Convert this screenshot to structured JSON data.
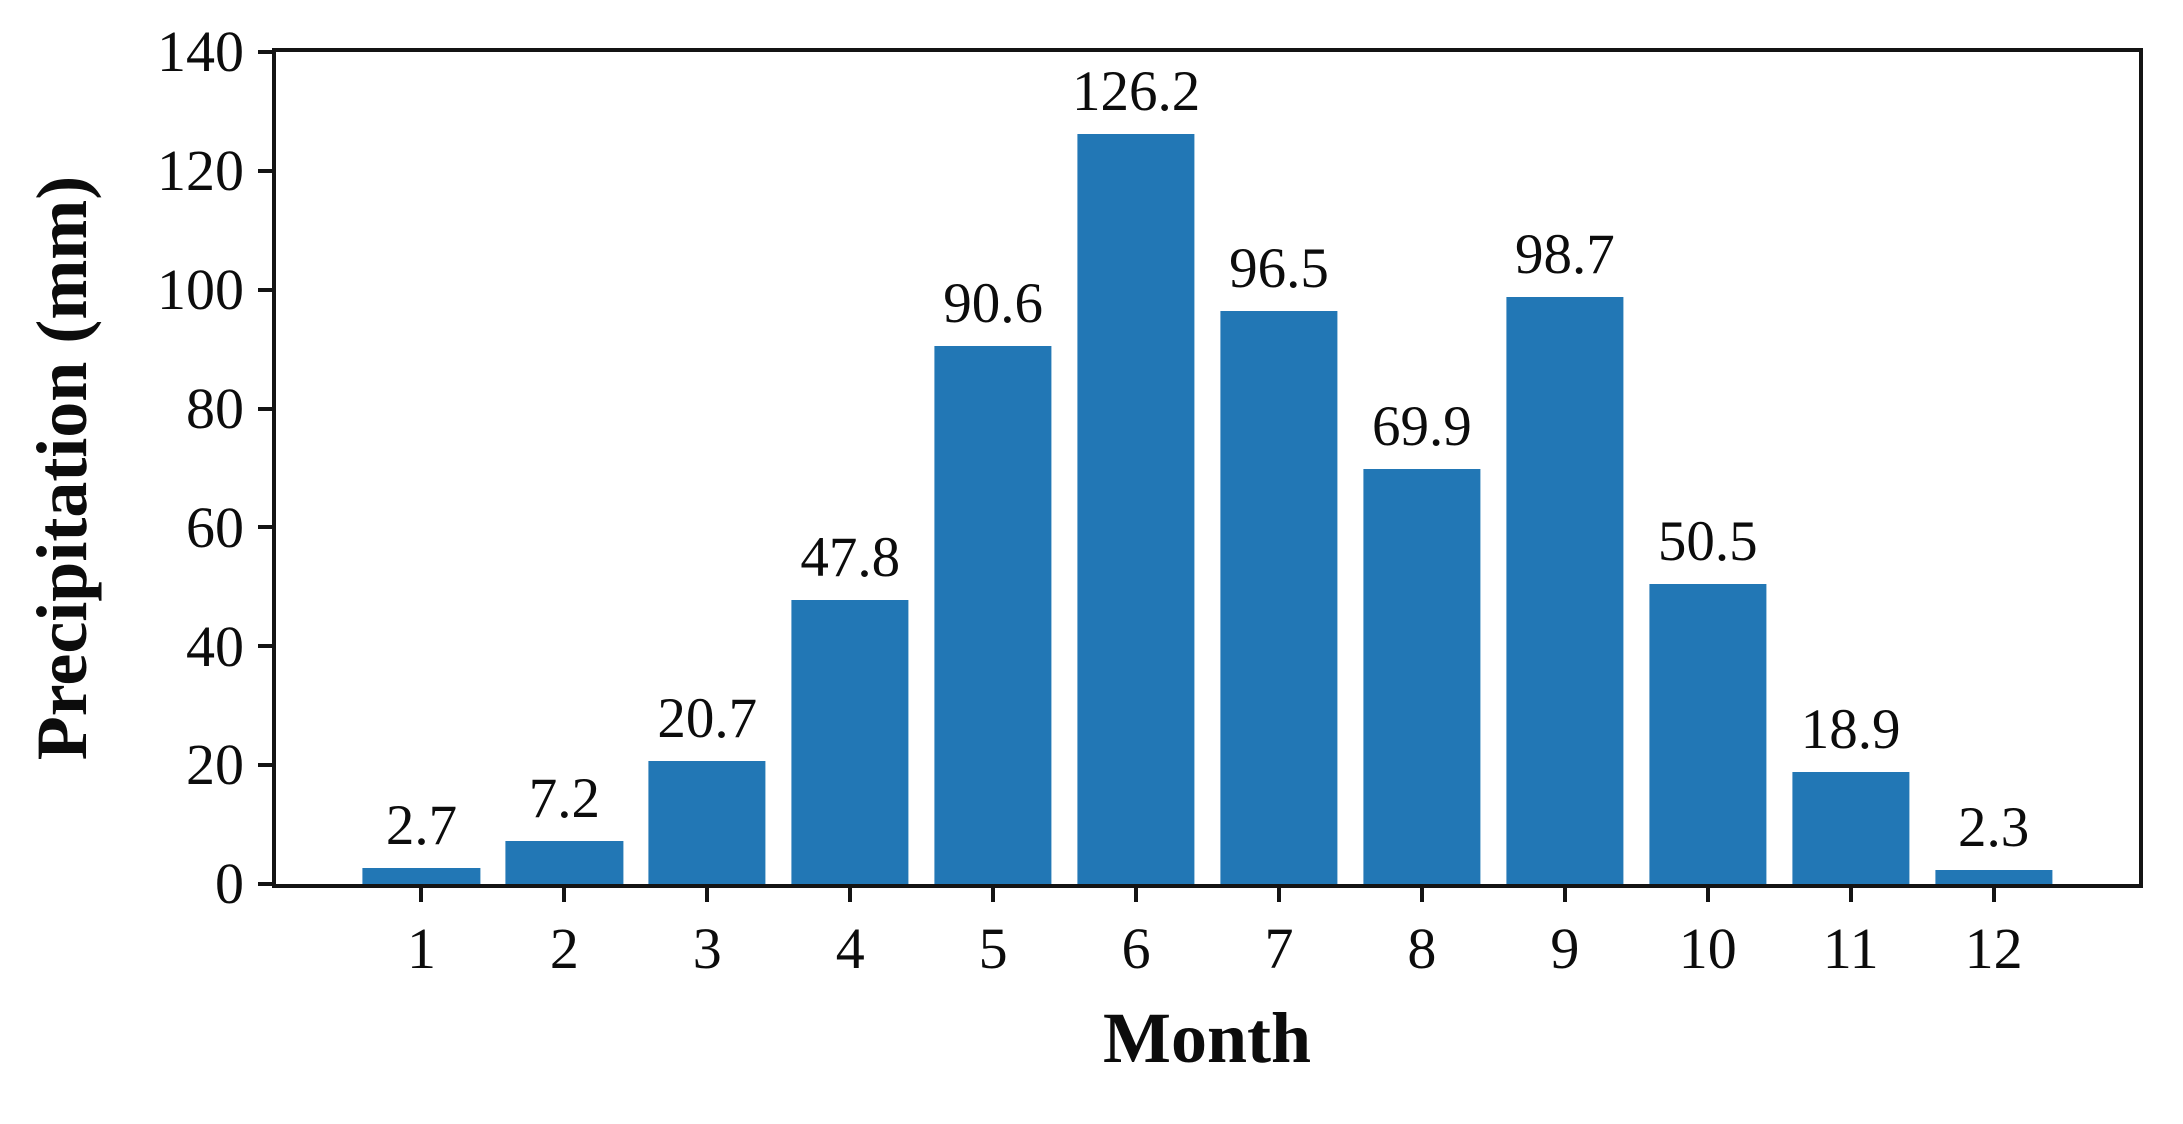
{
  "chart_data": {
    "type": "bar",
    "title": "",
    "xlabel": "Month",
    "ylabel": "Precipitation (mm)",
    "categories": [
      "1",
      "2",
      "3",
      "4",
      "5",
      "6",
      "7",
      "8",
      "9",
      "10",
      "11",
      "12"
    ],
    "values": [
      2.7,
      7.2,
      20.7,
      47.8,
      90.6,
      126.2,
      96.5,
      69.9,
      98.7,
      50.5,
      18.9,
      2.3
    ],
    "value_labels": [
      "2.7",
      "7.2",
      "20.7",
      "47.8",
      "90.6",
      "126.2",
      "96.5",
      "69.9",
      "98.7",
      "50.5",
      "18.9",
      "2.3"
    ],
    "ylim": [
      0,
      140
    ],
    "yticks": [
      0,
      20,
      40,
      60,
      80,
      100,
      120,
      140
    ],
    "grid": false,
    "legend": null,
    "bar_color": "#2277b5",
    "axis_color": "#141414"
  }
}
